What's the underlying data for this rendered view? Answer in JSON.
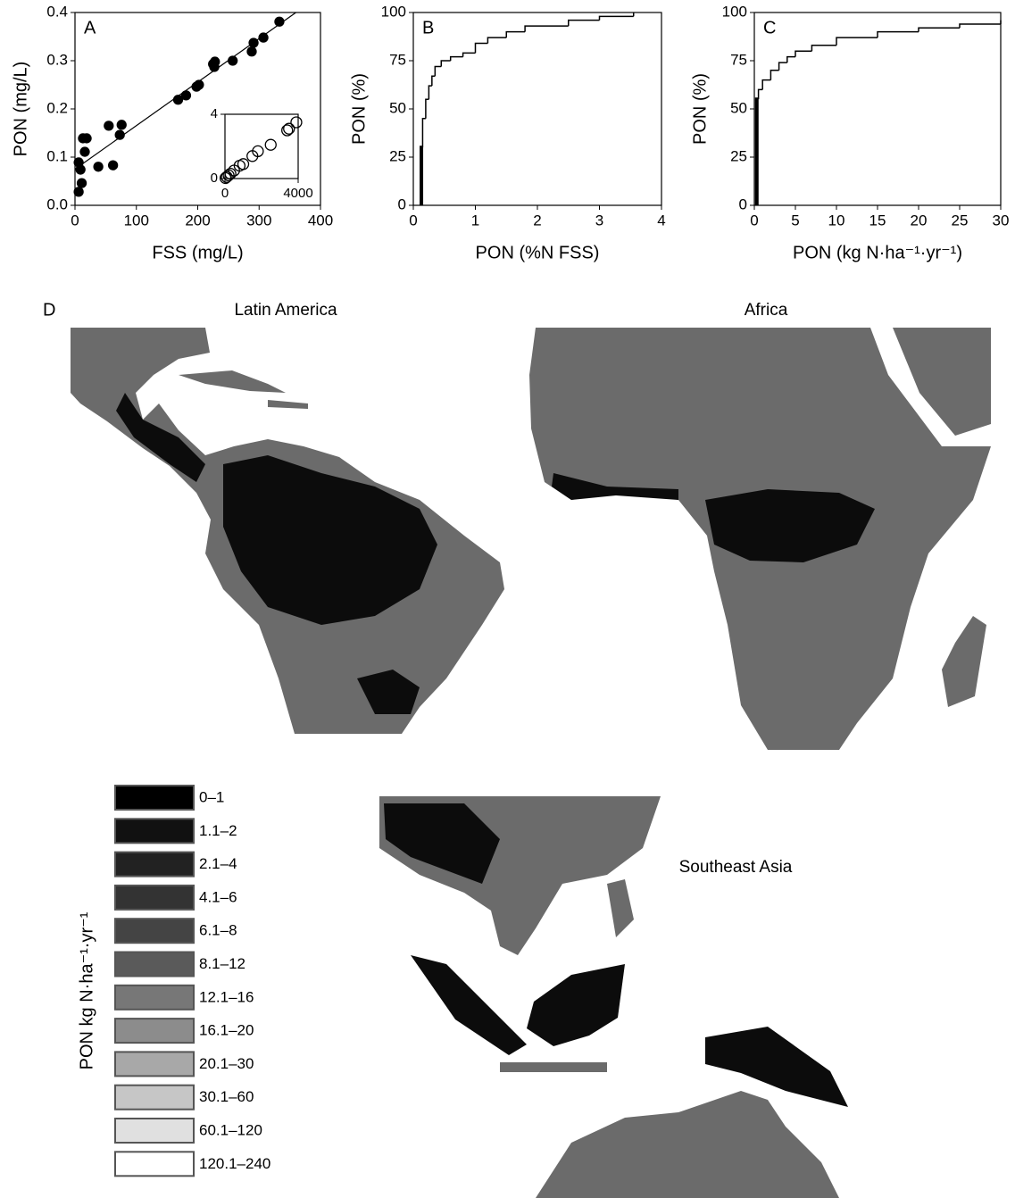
{
  "chart_data": [
    {
      "type": "scatter",
      "panel_label": "A",
      "xlabel": "FSS (mg/L)",
      "ylabel": "PON (mg/L)",
      "marker": "filled",
      "color": "#000000",
      "x": [
        6,
        11,
        9,
        6,
        16,
        13,
        19,
        38,
        55,
        62,
        73,
        76,
        168,
        181,
        198,
        202,
        225,
        228,
        227,
        257,
        288,
        291,
        307,
        333
      ],
      "values": [
        0.028,
        0.046,
        0.074,
        0.089,
        0.111,
        0.139,
        0.139,
        0.08,
        0.165,
        0.083,
        0.146,
        0.167,
        0.219,
        0.228,
        0.246,
        0.25,
        0.293,
        0.298,
        0.287,
        0.3,
        0.319,
        0.337,
        0.348,
        0.381
      ],
      "xlim": [
        0,
        400
      ],
      "ylim": [
        0,
        0.4
      ],
      "xticks": [
        0,
        100,
        200,
        300,
        400
      ],
      "yticks": [
        {
          "value": 0,
          "label": "0.0"
        },
        0.1,
        0.2,
        0.3,
        0.4
      ],
      "fit": {
        "x": [
          0,
          360
        ],
        "values": [
          0.075,
          0.4
        ]
      },
      "inset": {
        "marker": "open",
        "color": "#000000",
        "x": [
          30,
          100,
          200,
          300,
          500,
          800,
          1000,
          1500,
          1800,
          2500,
          3400,
          3500,
          3900
        ],
        "values": [
          0.03,
          0.1,
          0.2,
          0.3,
          0.5,
          0.8,
          0.9,
          1.4,
          1.7,
          2.1,
          3.0,
          3.1,
          3.5
        ],
        "xlim": [
          0,
          4000
        ],
        "ylim": [
          0,
          4
        ],
        "xticks": [
          0,
          4000
        ],
        "yticks": [
          0,
          4
        ]
      }
    },
    {
      "type": "step",
      "panel_label": "B",
      "xlabel": "PON (%N FSS)",
      "ylabel": "PON (%)",
      "color": "#000000",
      "x": [
        0.13,
        0.15,
        0.2,
        0.25,
        0.3,
        0.35,
        0.45,
        0.6,
        0.8,
        1.0,
        1.2,
        1.5,
        1.8,
        2.5,
        3.0,
        3.55
      ],
      "values": [
        30,
        45,
        55,
        62,
        67,
        72,
        75,
        77,
        79,
        84,
        87,
        90,
        93,
        96,
        98,
        100
      ],
      "xlim": [
        0,
        4
      ],
      "ylim": [
        0,
        100
      ],
      "xticks": [
        0,
        1,
        2,
        3,
        4
      ],
      "yticks": [
        0,
        25,
        50,
        75,
        100
      ]
    },
    {
      "type": "step",
      "panel_label": "C",
      "xlabel": "PON (kg N·ha⁻¹·yr⁻¹)",
      "ylabel": "PON (%)",
      "color": "#000000",
      "x": [
        0.3,
        0.5,
        1,
        2,
        3,
        4,
        5,
        7,
        10,
        15,
        20,
        25,
        30
      ],
      "values": [
        55,
        60,
        65,
        70,
        74,
        77,
        80,
        83,
        87,
        90,
        92,
        94,
        96
      ],
      "xlim": [
        0,
        30
      ],
      "ylim": [
        0,
        100
      ],
      "xticks": [
        0,
        5,
        10,
        15,
        20,
        25,
        30
      ],
      "yticks": [
        0,
        25,
        50,
        75,
        100
      ]
    }
  ],
  "map": {
    "panel_label": "D",
    "regions": [
      "Latin America",
      "Africa",
      "Southeast Asia"
    ],
    "legend": {
      "title": "PON kg N·ha⁻¹·yr⁻¹",
      "items": [
        {
          "label": "0–1",
          "color": "#000000"
        },
        {
          "label": "1.1–2",
          "color": "#111111"
        },
        {
          "label": "2.1–4",
          "color": "#222222"
        },
        {
          "label": "4.1–6",
          "color": "#333333"
        },
        {
          "label": "6.1–8",
          "color": "#444444"
        },
        {
          "label": "8.1–12",
          "color": "#5a5a5a"
        },
        {
          "label": "12.1–16",
          "color": "#777777"
        },
        {
          "label": "16.1–20",
          "color": "#8c8c8c"
        },
        {
          "label": "20.1–30",
          "color": "#a8a8a8"
        },
        {
          "label": "30.1–60",
          "color": "#c6c6c6"
        },
        {
          "label": "60.1–120",
          "color": "#e0e0e0"
        },
        {
          "label": "120.1–240",
          "color": "#ffffff"
        }
      ]
    }
  }
}
